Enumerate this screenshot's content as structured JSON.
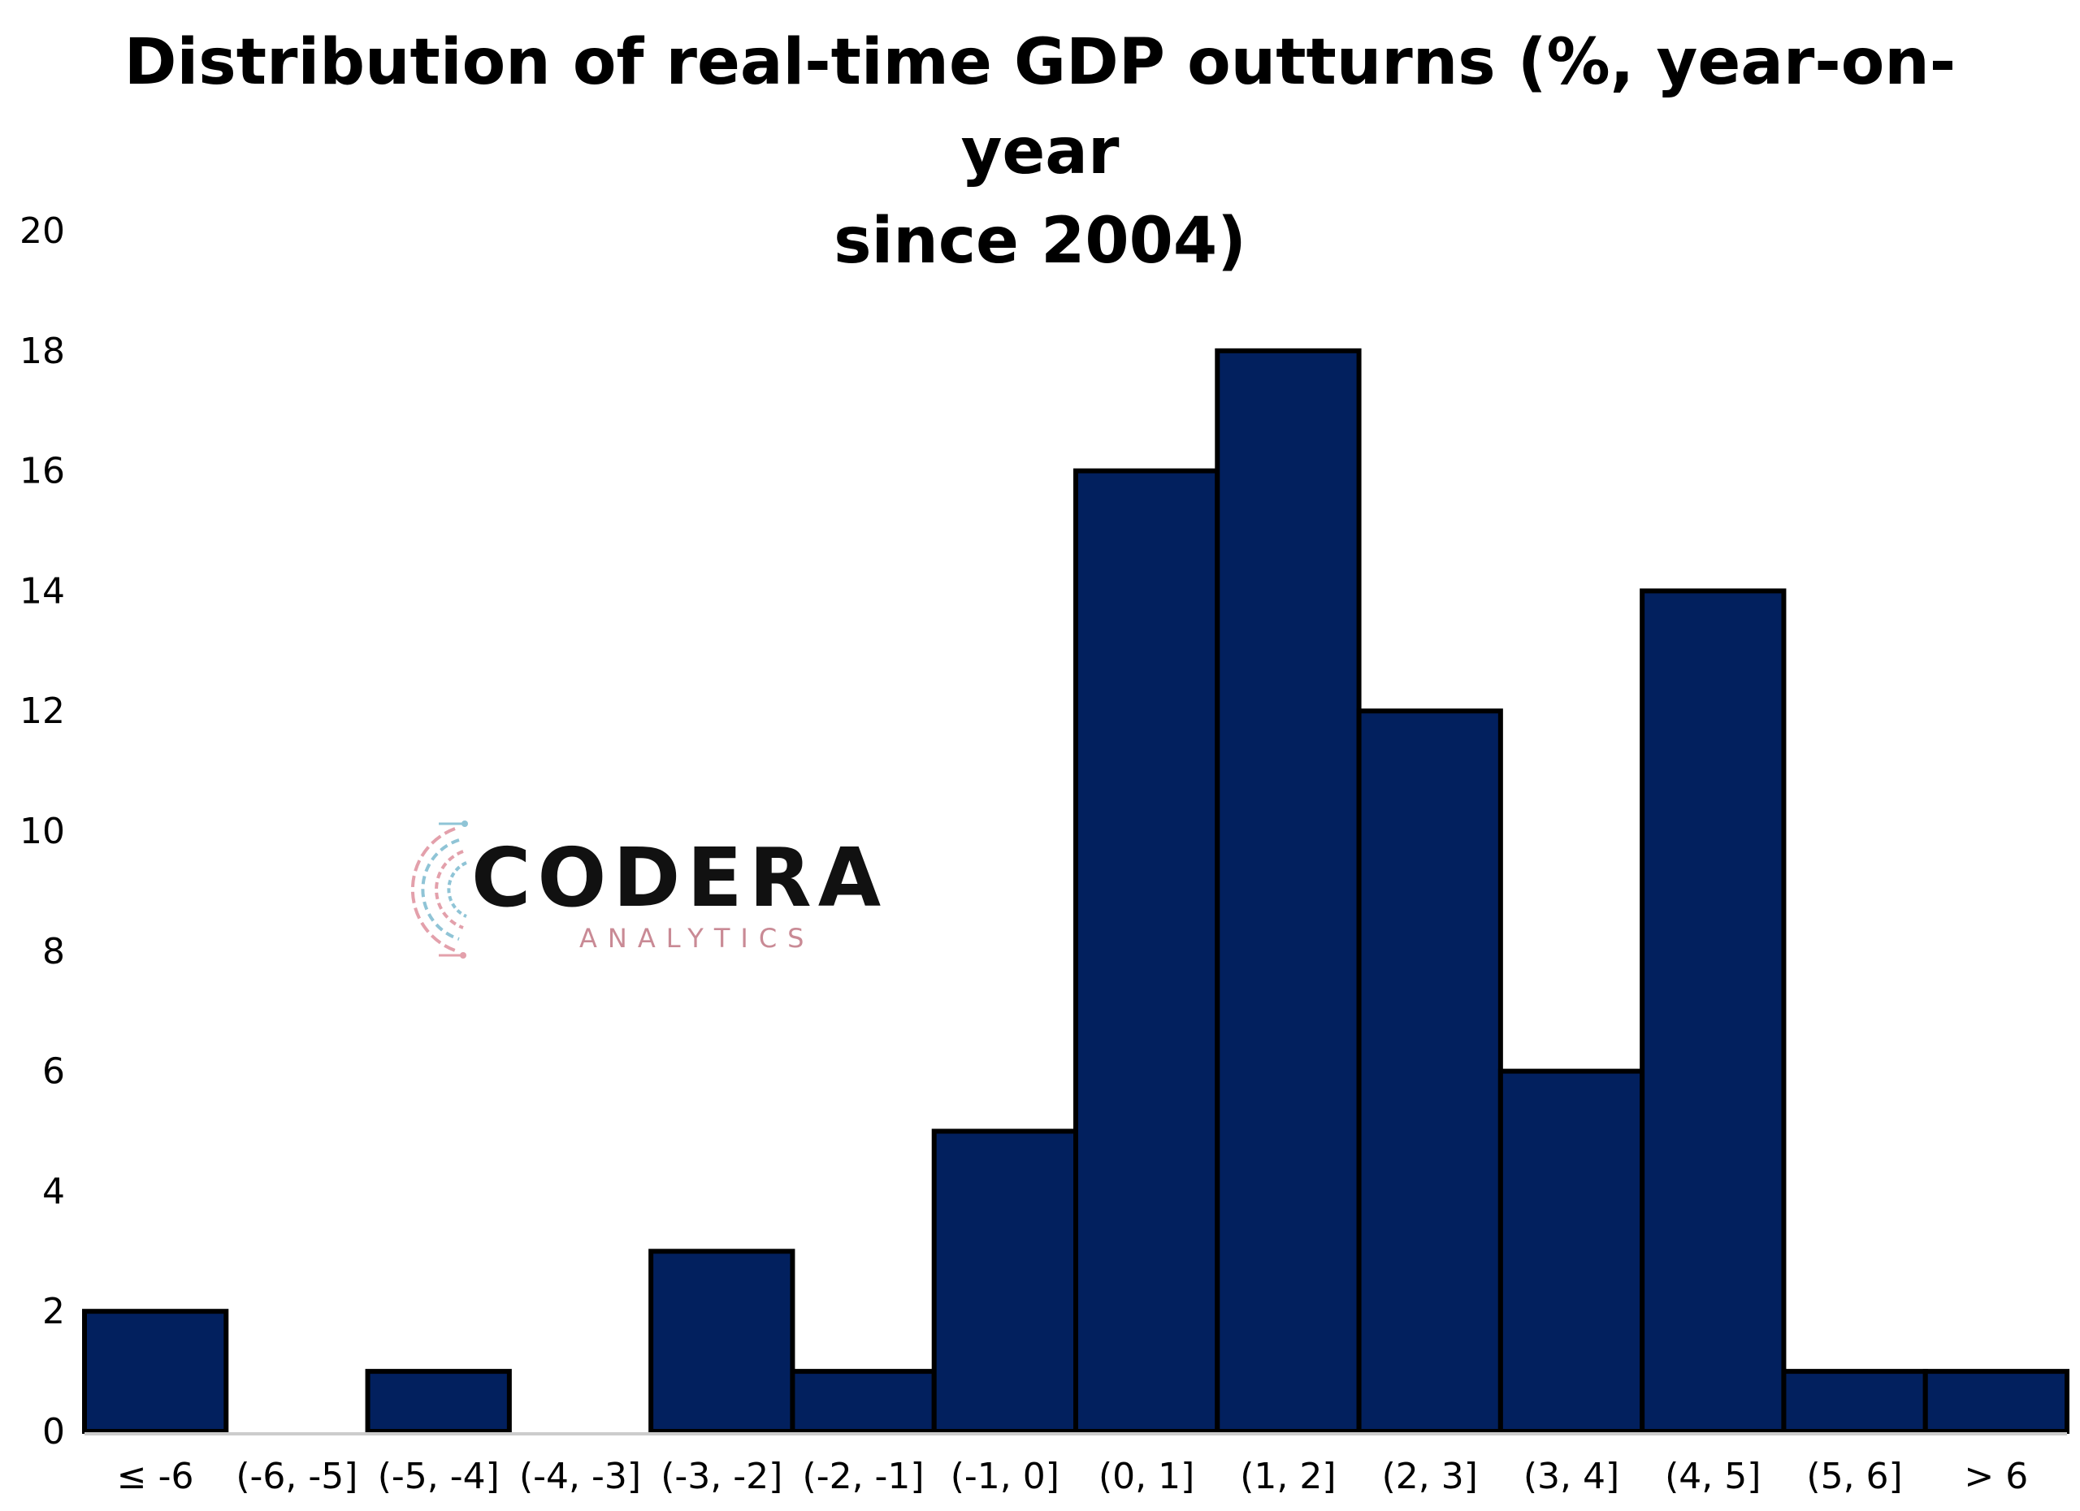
{
  "chart_data": {
    "type": "bar",
    "title": "Distribution of real-time GDP outturns (%, year-on-year since 2004)",
    "title_lines": [
      "Distribution of real-time GDP outturns (%, year-on-year",
      "since 2004)"
    ],
    "categories": [
      "≤ -6",
      "(-6, -5]",
      "(-5, -4]",
      "(-4, -3]",
      "(-3, -2]",
      "(-2, -1]",
      "(-1, 0]",
      "(0, 1]",
      "(1, 2]",
      "(2, 3]",
      "(3, 4]",
      "(4, 5]",
      "(5, 6]",
      "> 6"
    ],
    "values": [
      2,
      0,
      1,
      0,
      3,
      1,
      5,
      16,
      18,
      12,
      6,
      14,
      1,
      1
    ],
    "xlabel": "",
    "ylabel": "",
    "ylim": [
      0,
      20
    ],
    "yticks": [
      "0",
      "2",
      "4",
      "6",
      "8",
      "10",
      "12",
      "14",
      "16",
      "18",
      "20"
    ],
    "grid": false,
    "bar_color": "#02205e",
    "bar_edge_color": "#000000"
  },
  "logo": {
    "word": "CODERA",
    "sub": "ANALYTICS",
    "sub_color": "#c98a95",
    "ring_colors": [
      "#e3a0ab",
      "#8fc4d6"
    ]
  }
}
